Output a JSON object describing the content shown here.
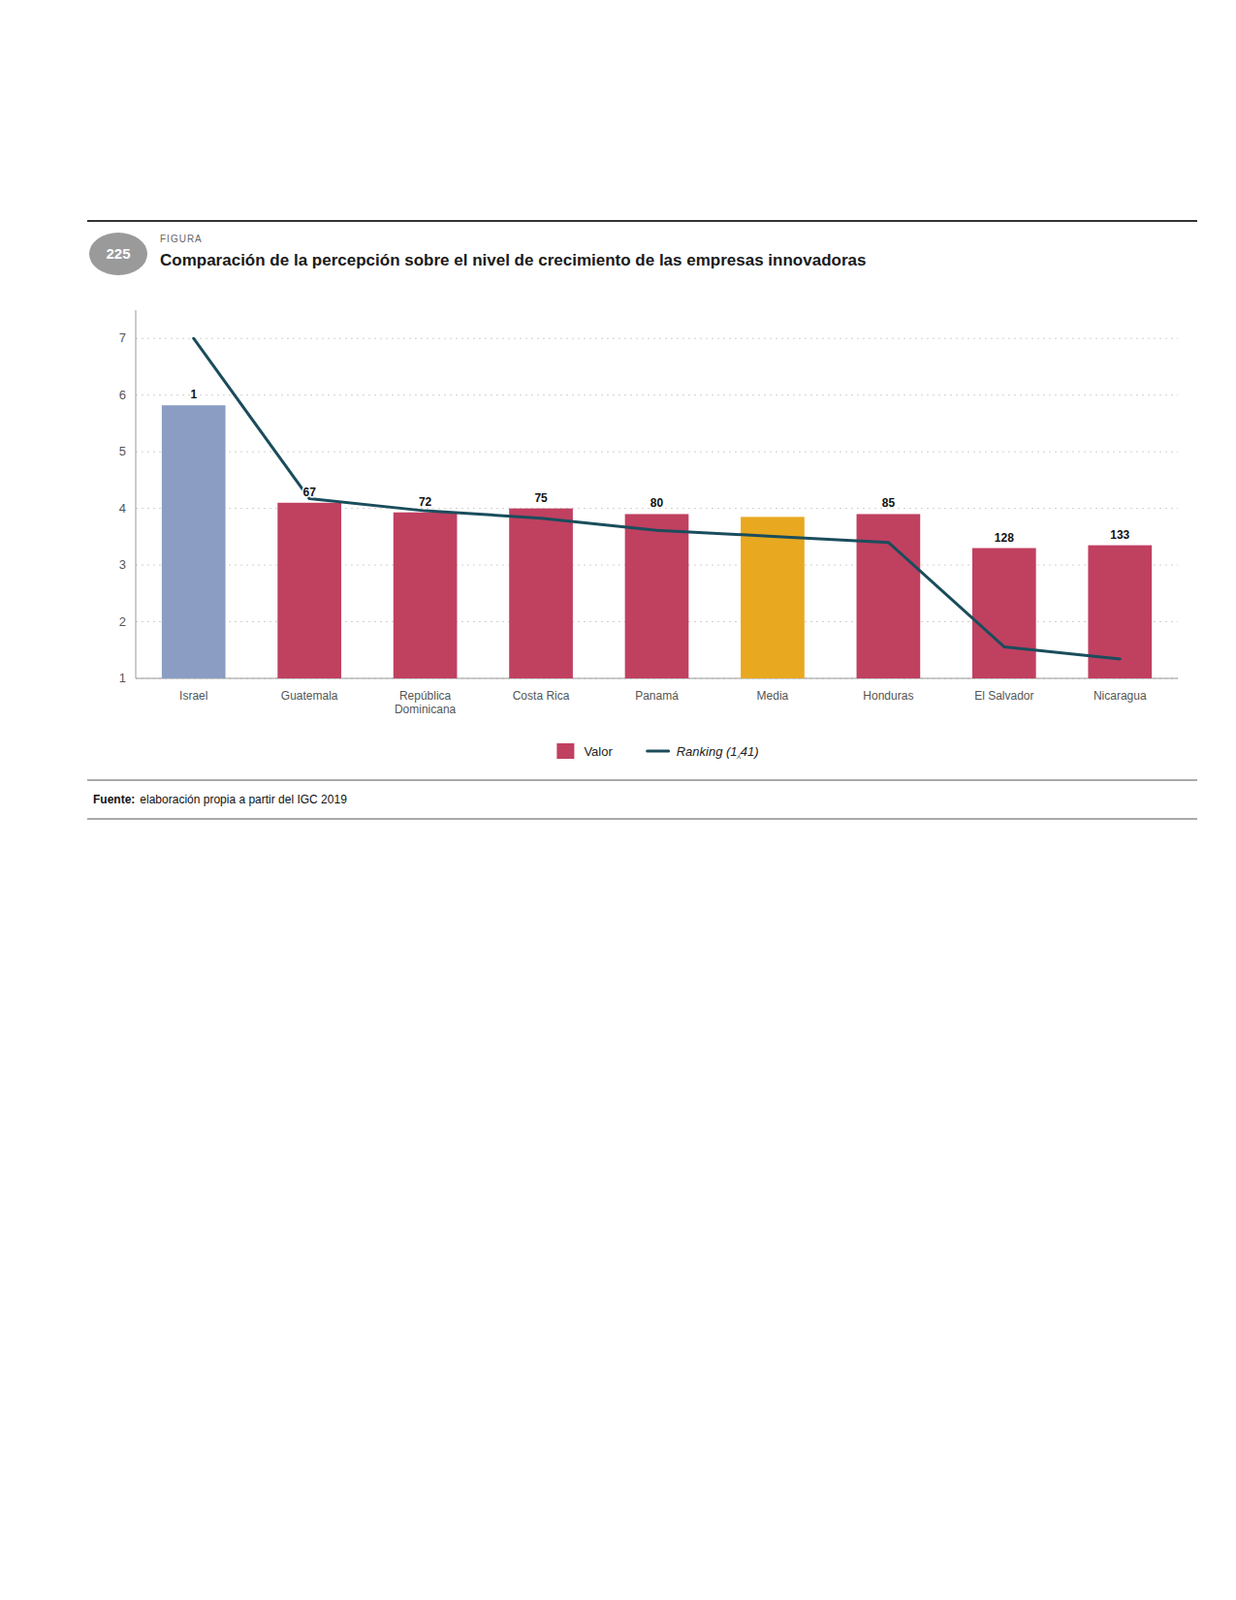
{
  "chart_data": {
    "type": "bar",
    "figure_label": "FIGURA",
    "figure_number": "225",
    "title": "Comparación de la percepción sobre el nivel de crecimiento de las empresas innovadoras",
    "categories": [
      "Israel",
      "Guatemala",
      "República\nDominicana",
      "Costa Rica",
      "Panamá",
      "Media",
      "Honduras",
      "El Salvador",
      "Nicaragua"
    ],
    "series": [
      {
        "name": "Valor",
        "type": "bar",
        "color": "#C04060",
        "colors": [
          "#8B9DC3",
          "#C04060",
          "#C04060",
          "#C04060",
          "#C04060",
          "#E8A820",
          "#C04060",
          "#C04060",
          "#C04060"
        ],
        "values": [
          5.82,
          4.1,
          3.93,
          4.0,
          3.9,
          3.85,
          3.9,
          3.3,
          3.35
        ]
      },
      {
        "name": "Ranking (1⁁41)",
        "type": "line",
        "axis": "y2",
        "color": "#1A4D5C",
        "values": [
          1,
          67,
          72,
          75,
          80,
          82.5,
          85,
          128,
          133
        ],
        "data_labels": true,
        "value_labels": [
          "1",
          "67",
          "72",
          "75",
          "80",
          null,
          "85",
          "128",
          "133"
        ]
      }
    ],
    "ylim": [
      1.0,
      7.5
    ],
    "yticks": [
      1,
      2,
      3,
      4,
      5,
      6,
      7
    ],
    "y2lim": [
      141,
      -10.666666666666666
    ],
    "tick_labels": "y",
    "grid": true,
    "legend": "bottom",
    "source_label": "Fuente:",
    "source_text": "elaboración propia a partir del IGC 2019"
  }
}
